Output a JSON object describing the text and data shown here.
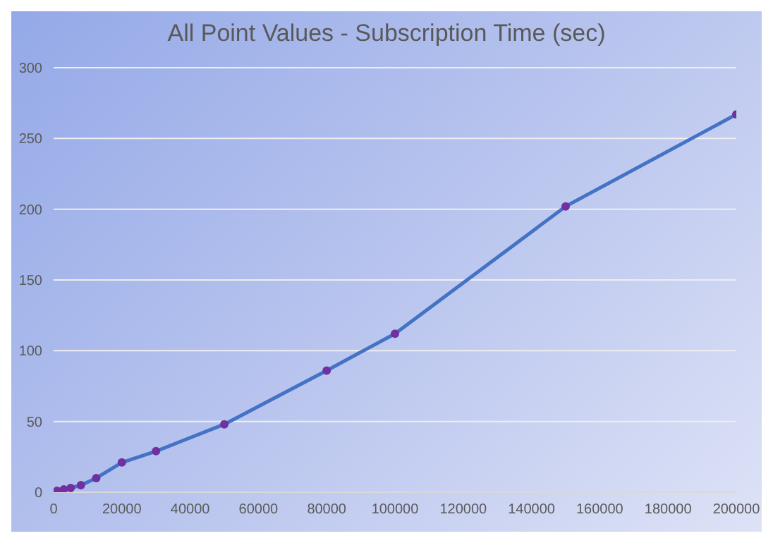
{
  "chart_data": {
    "type": "line",
    "title": "All Point Values - Subscription Time (sec)",
    "x": [
      1000,
      3000,
      5000,
      8000,
      12500,
      20000,
      30000,
      50000,
      80000,
      100000,
      150000,
      200000
    ],
    "series": [
      {
        "color": "#4472c4",
        "colors": [
          "#7030a0",
          "#7030a0",
          "#7030a0",
          "#7030a0",
          "#7030a0",
          "#7030a0",
          "#7030a0",
          "#7030a0",
          "#7030a0",
          "#7030a0",
          "#7030a0",
          "#7030a0"
        ],
        "values": [
          1,
          2,
          3,
          5,
          10,
          21,
          29,
          48,
          86,
          112,
          202,
          267
        ]
      }
    ],
    "xlim": [
      0,
      200000
    ],
    "xticks": [
      0,
      20000,
      40000,
      60000,
      80000,
      100000,
      120000,
      140000,
      160000,
      180000,
      200000
    ],
    "ylim": [
      0,
      300
    ],
    "yticks": [
      0,
      50,
      100,
      150,
      200,
      250,
      300
    ],
    "grid": "y",
    "marker": "circle",
    "line_style": "solid"
  }
}
